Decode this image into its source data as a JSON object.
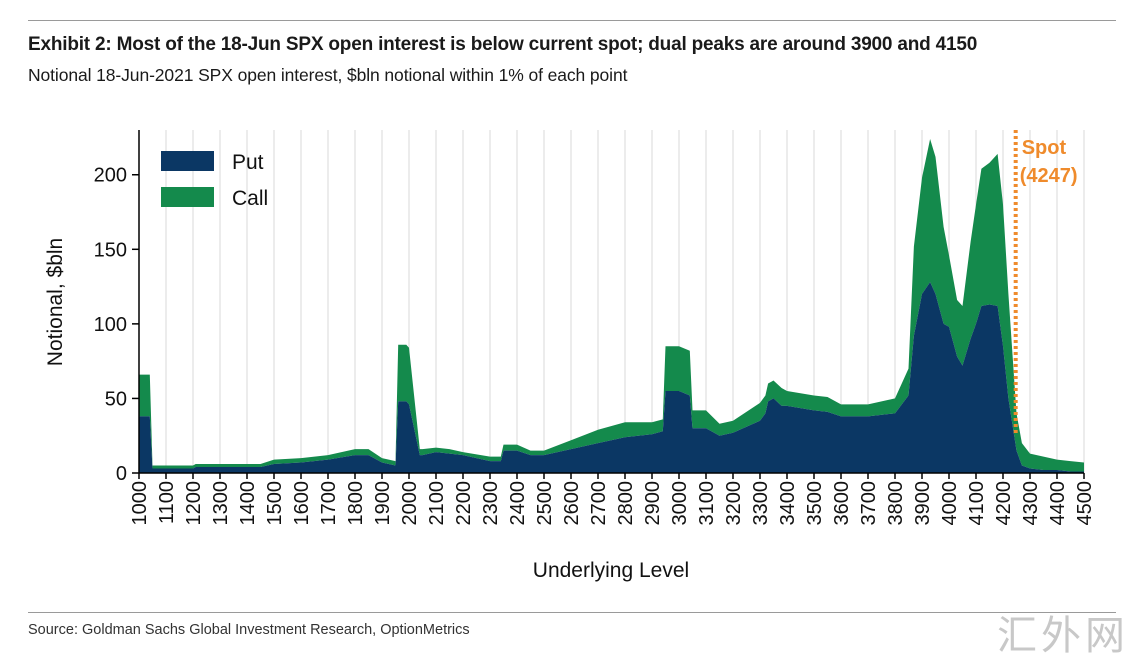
{
  "header": {
    "title": "Exhibit 2: Most of the 18-Jun SPX open interest is below current spot; dual peaks are around 3900 and 4150",
    "subtitle": "Notional 18-Jun-2021 SPX open interest, $bln notional within 1% of each point"
  },
  "footer": {
    "source": "Source: Goldman Sachs Global Investment Research, OptionMetrics",
    "watermark": "汇外网"
  },
  "colors": {
    "put": "#0b3764",
    "call": "#148a4c",
    "spot": "#ef8b2c",
    "grid": "#d9d9d9",
    "axis": "#000000"
  },
  "chart_data": {
    "type": "area",
    "stacked": true,
    "xlabel": "Underlying Level",
    "ylabel": "Notional, $bln",
    "xlim": [
      1000,
      4500
    ],
    "ylim": [
      0,
      230
    ],
    "xticks": [
      1000,
      1100,
      1200,
      1300,
      1400,
      1500,
      1600,
      1700,
      1800,
      1900,
      2000,
      2100,
      2200,
      2300,
      2400,
      2500,
      2600,
      2700,
      2800,
      2900,
      3000,
      3100,
      3200,
      3300,
      3400,
      3500,
      3600,
      3700,
      3800,
      3900,
      4000,
      4100,
      4200,
      4300,
      4400,
      4500
    ],
    "yticks": [
      0,
      50,
      100,
      150,
      200
    ],
    "legend": {
      "position": "top-left",
      "entries": [
        "Put",
        "Call"
      ]
    },
    "annotation": {
      "label": "Spot",
      "value_label": "(4247)",
      "x": 4247
    },
    "x": [
      1000,
      1010,
      1040,
      1050,
      1100,
      1200,
      1210,
      1300,
      1400,
      1450,
      1500,
      1600,
      1700,
      1800,
      1850,
      1900,
      1950,
      1960,
      1990,
      2000,
      2040,
      2050,
      2100,
      2150,
      2200,
      2300,
      2340,
      2350,
      2400,
      2450,
      2500,
      2600,
      2700,
      2800,
      2900,
      2940,
      2950,
      3000,
      3040,
      3050,
      3100,
      3150,
      3200,
      3300,
      3320,
      3330,
      3350,
      3380,
      3400,
      3500,
      3550,
      3600,
      3700,
      3800,
      3850,
      3870,
      3900,
      3930,
      3950,
      3980,
      4000,
      4030,
      4050,
      4080,
      4100,
      4120,
      4150,
      4180,
      4200,
      4220,
      4250,
      4270,
      4300,
      4350,
      4400,
      4450,
      4500
    ],
    "series": [
      {
        "name": "Put",
        "values": [
          38,
          38,
          38,
          3,
          3,
          3,
          4,
          4,
          4,
          4,
          6,
          7,
          9,
          12,
          12,
          7,
          5,
          48,
          48,
          46,
          12,
          12,
          14,
          13,
          12,
          8,
          8,
          15,
          15,
          12,
          12,
          16,
          20,
          24,
          26,
          28,
          55,
          55,
          52,
          30,
          30,
          25,
          27,
          35,
          40,
          48,
          50,
          45,
          45,
          42,
          41,
          38,
          38,
          40,
          52,
          92,
          120,
          128,
          120,
          100,
          98,
          78,
          72,
          90,
          100,
          112,
          113,
          112,
          85,
          50,
          15,
          5,
          3,
          2,
          2,
          1,
          1
        ]
      },
      {
        "name": "Call",
        "values": [
          28,
          28,
          28,
          2,
          2,
          2,
          2,
          2,
          2,
          2,
          3,
          3,
          3,
          4,
          4,
          3,
          3,
          38,
          38,
          38,
          4,
          4,
          3,
          3,
          2,
          3,
          3,
          4,
          4,
          3,
          3,
          6,
          9,
          10,
          8,
          8,
          30,
          30,
          30,
          12,
          12,
          8,
          8,
          12,
          12,
          12,
          12,
          12,
          10,
          10,
          10,
          8,
          8,
          10,
          18,
          60,
          78,
          96,
          92,
          65,
          48,
          38,
          40,
          65,
          80,
          92,
          95,
          102,
          95,
          70,
          25,
          15,
          10,
          9,
          7,
          7,
          6
        ]
      }
    ]
  }
}
